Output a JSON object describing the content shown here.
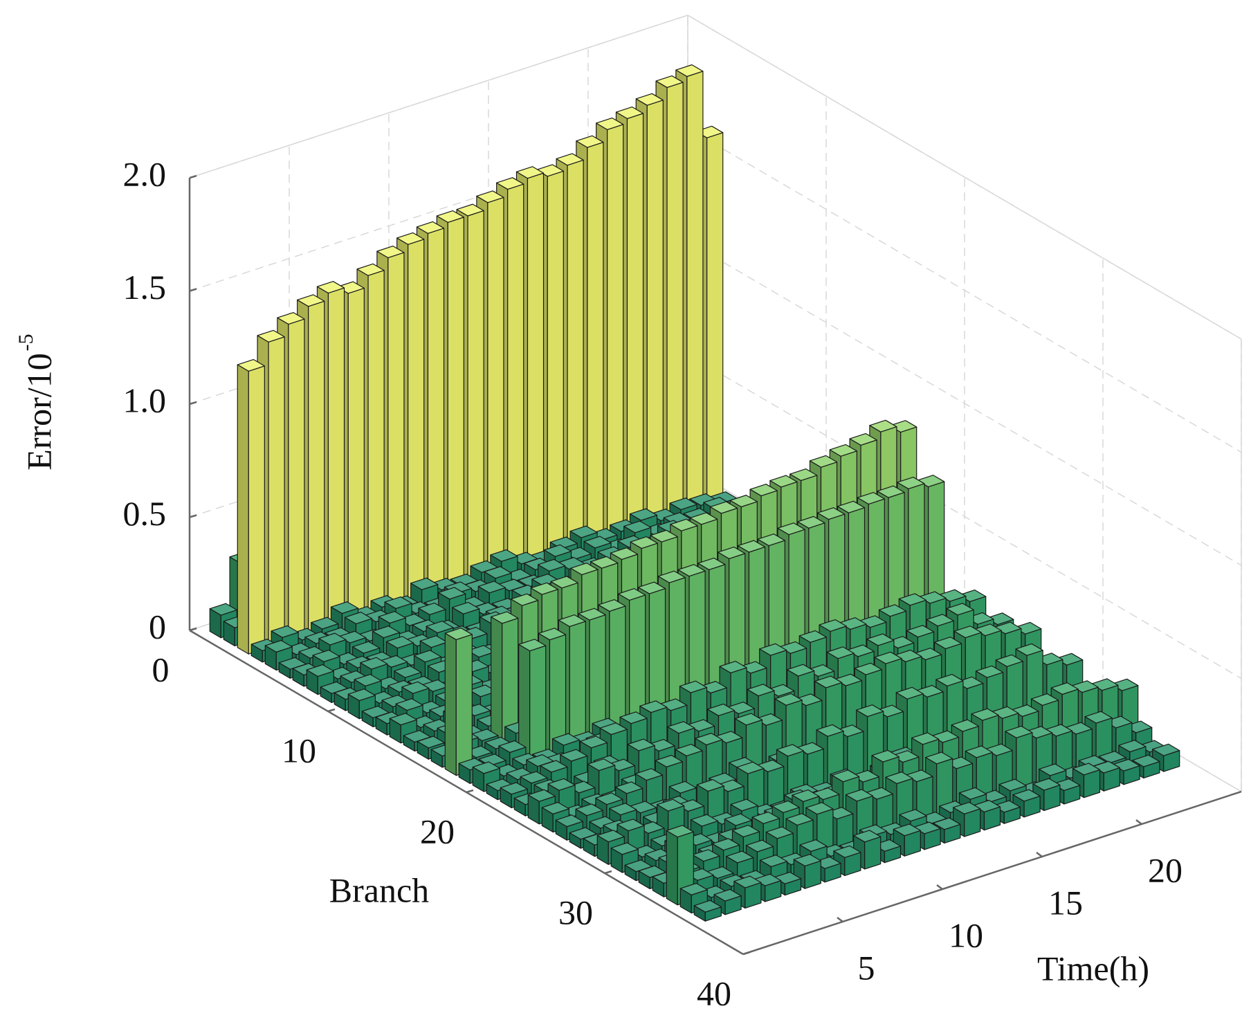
{
  "chart_data": {
    "type": "bar3d",
    "xlabel": "Branch",
    "ylabel": "Time(h)",
    "zlabel": "Error/10",
    "zlabel_exponent": "-5",
    "xlim": [
      0,
      40
    ],
    "xticks": [
      0,
      10,
      20,
      30,
      40
    ],
    "ylim": [
      0,
      25
    ],
    "yticks": [
      5,
      10,
      15,
      20
    ],
    "zlim": [
      0,
      2
    ],
    "zticks": [
      0,
      0.5,
      {
        "value": 1,
        "label": "1.0"
      },
      1.5,
      {
        "value": 2,
        "label": "2.0"
      }
    ],
    "grid": true,
    "colormap": [
      "#1e8a68",
      "#3fae68",
      "#8fd46c",
      "#eef46e"
    ],
    "clim": [
      0,
      1.2
    ],
    "x": [
      1,
      2,
      3,
      4,
      5,
      6,
      7,
      8,
      9,
      10,
      11,
      12,
      13,
      14,
      15,
      16,
      17,
      18,
      19,
      20,
      21,
      22,
      23,
      24,
      25,
      26,
      27,
      28,
      29,
      30,
      31,
      32,
      33,
      34,
      35,
      36
    ],
    "y": [
      1,
      2,
      3,
      4,
      5,
      6,
      7,
      8,
      9,
      10,
      11,
      12,
      13,
      14,
      15,
      16,
      17,
      18,
      19,
      20,
      21,
      22,
      23,
      24
    ],
    "values": [
      [
        0.1,
        0.3,
        0.25,
        0.15,
        0.2,
        0.25,
        0.3,
        0.3,
        0.32,
        0.35,
        0.38,
        0.4,
        0.42,
        0.42,
        0.45,
        0.45,
        0.45,
        0.48,
        0.48,
        0.5,
        0.5,
        0.5,
        0.5,
        0.5
      ],
      [
        0.08,
        0.15,
        0.15,
        0.12,
        0.15,
        0.18,
        0.2,
        0.22,
        0.25,
        0.25,
        0.28,
        0.3,
        0.3,
        0.32,
        0.32,
        0.35,
        0.35,
        0.35,
        0.38,
        0.38,
        0.4,
        0.4,
        0.4,
        0.42
      ],
      [
        1.25,
        1.35,
        1.4,
        1.45,
        1.48,
        1.45,
        1.5,
        1.55,
        1.58,
        1.6,
        1.62,
        1.62,
        1.65,
        1.68,
        1.7,
        1.68,
        1.7,
        1.75,
        1.8,
        1.82,
        1.85,
        1.9,
        1.92,
        1.62
      ],
      [
        0.05,
        0.08,
        0.04,
        0.06,
        0.1,
        0.05,
        0.07,
        0.04,
        0.09,
        0.06,
        0.05,
        0.08,
        0.1,
        0.06,
        0.04,
        0.07,
        0.09,
        0.05,
        0.06,
        0.08,
        0.05,
        0.07,
        0.06,
        0.04
      ],
      [
        0.08,
        0.04,
        0.06,
        0.05,
        0.09,
        0.07,
        0.1,
        0.05,
        0.04,
        0.08,
        0.06,
        0.09,
        0.05,
        0.07,
        0.1,
        0.06,
        0.08,
        0.04,
        0.09,
        0.05,
        0.07,
        0.06,
        0.08,
        0.05
      ],
      [
        0.04,
        0.06,
        0.09,
        0.07,
        0.05,
        0.1,
        0.06,
        0.08,
        0.12,
        0.05,
        0.09,
        0.07,
        0.06,
        0.1,
        0.08,
        0.05,
        0.07,
        0.09,
        0.06,
        0.1,
        0.08,
        0.06,
        0.05,
        0.07
      ],
      [
        0.05,
        0.08,
        0.04,
        0.06,
        0.1,
        0.05,
        0.07,
        0.04,
        0.09,
        0.06,
        0.05,
        0.08,
        0.1,
        0.06,
        0.04,
        0.07,
        0.09,
        0.05,
        0.06,
        0.08,
        0.05,
        0.07,
        0.06,
        0.04
      ],
      [
        0.08,
        0.04,
        0.06,
        0.05,
        0.09,
        0.07,
        0.1,
        0.05,
        0.04,
        0.08,
        0.06,
        0.09,
        0.05,
        0.07,
        0.1,
        0.06,
        0.08,
        0.04,
        0.09,
        0.05,
        0.07,
        0.06,
        0.08,
        0.05
      ],
      [
        0.04,
        0.06,
        0.09,
        0.07,
        0.05,
        0.1,
        0.06,
        0.08,
        0.12,
        0.05,
        0.09,
        0.07,
        0.06,
        0.1,
        0.08,
        0.05,
        0.07,
        0.09,
        0.06,
        0.1,
        0.08,
        0.06,
        0.05,
        0.07
      ],
      [
        0.05,
        0.08,
        0.04,
        0.06,
        0.1,
        0.05,
        0.07,
        0.04,
        0.09,
        0.06,
        0.05,
        0.08,
        0.1,
        0.06,
        0.04,
        0.07,
        0.09,
        0.05,
        0.06,
        0.08,
        0.05,
        0.07,
        0.06,
        0.04
      ],
      [
        0.08,
        0.04,
        0.06,
        0.05,
        0.09,
        0.07,
        0.1,
        0.05,
        0.04,
        0.08,
        0.06,
        0.09,
        0.05,
        0.07,
        0.1,
        0.06,
        0.08,
        0.04,
        0.09,
        0.05,
        0.07,
        0.06,
        0.08,
        0.05
      ],
      [
        0.04,
        0.06,
        0.09,
        0.07,
        0.05,
        0.1,
        0.06,
        0.08,
        0.12,
        0.05,
        0.09,
        0.07,
        0.06,
        0.1,
        0.08,
        0.05,
        0.07,
        0.09,
        0.06,
        0.1,
        0.08,
        0.06,
        0.05,
        0.07
      ],
      [
        0.05,
        0.08,
        0.04,
        0.06,
        0.1,
        0.05,
        0.07,
        0.04,
        0.09,
        0.06,
        0.05,
        0.08,
        0.1,
        0.06,
        0.04,
        0.07,
        0.09,
        0.05,
        0.06,
        0.08,
        0.05,
        0.07,
        0.06,
        0.04
      ],
      [
        0.08,
        0.04,
        0.06,
        0.05,
        0.09,
        0.07,
        0.1,
        0.05,
        0.04,
        0.08,
        0.06,
        0.09,
        0.05,
        0.07,
        0.1,
        0.06,
        0.08,
        0.04,
        0.09,
        0.05,
        0.07,
        0.06,
        0.08,
        0.05
      ],
      [
        0.04,
        0.06,
        0.09,
        0.07,
        0.05,
        0.1,
        0.06,
        0.08,
        0.12,
        0.05,
        0.09,
        0.07,
        0.06,
        0.1,
        0.08,
        0.05,
        0.07,
        0.09,
        0.06,
        0.1,
        0.08,
        0.06,
        0.05,
        0.07
      ],
      [
        0.05,
        0.08,
        0.04,
        0.06,
        0.1,
        0.05,
        0.07,
        0.04,
        0.09,
        0.06,
        0.05,
        0.08,
        0.1,
        0.06,
        0.04,
        0.07,
        0.09,
        0.05,
        0.06,
        0.08,
        0.05,
        0.07,
        0.06,
        0.04
      ],
      [
        0.05,
        0.08,
        0.06,
        0.55,
        0.6,
        0.62,
        0.62,
        0.65,
        0.65,
        0.66,
        0.68,
        0.68,
        0.7,
        0.7,
        0.72,
        0.72,
        0.74,
        0.75,
        0.75,
        0.78,
        0.8,
        0.82,
        0.85,
        0.82
      ],
      [
        0.6,
        0.05,
        0.06,
        0.1,
        0.08,
        0.1,
        0.12,
        0.1,
        0.08,
        0.1,
        0.12,
        0.1,
        0.08,
        0.1,
        0.09,
        0.1,
        0.12,
        0.1,
        0.08,
        0.1,
        0.09,
        0.1,
        0.08,
        0.1
      ],
      [
        0.06,
        0.05,
        0.08,
        0.5,
        0.52,
        0.55,
        0.55,
        0.56,
        0.58,
        0.58,
        0.6,
        0.6,
        0.6,
        0.62,
        0.62,
        0.62,
        0.64,
        0.64,
        0.65,
        0.65,
        0.66,
        0.66,
        0.67,
        0.65
      ],
      [
        0.08,
        0.04,
        0.06,
        0.05,
        0.09,
        0.07,
        0.1,
        0.05,
        0.04,
        0.08,
        0.06,
        0.09,
        0.05,
        0.07,
        0.1,
        0.06,
        0.08,
        0.04,
        0.09,
        0.05,
        0.07,
        0.06,
        0.08,
        0.05
      ],
      [
        0.04,
        0.06,
        0.09,
        0.07,
        0.05,
        0.1,
        0.06,
        0.08,
        0.12,
        0.05,
        0.09,
        0.07,
        0.06,
        0.1,
        0.08,
        0.05,
        0.07,
        0.09,
        0.06,
        0.1,
        0.08,
        0.06,
        0.05,
        0.07
      ],
      [
        0.06,
        0.08,
        0.1,
        0.12,
        0.15,
        0.18,
        0.2,
        0.22,
        0.2,
        0.25,
        0.22,
        0.28,
        0.25,
        0.3,
        0.28,
        0.3,
        0.32,
        0.3,
        0.28,
        0.3,
        0.32,
        0.3,
        0.28,
        0.25
      ],
      [
        0.05,
        0.08,
        0.04,
        0.06,
        0.1,
        0.05,
        0.07,
        0.04,
        0.09,
        0.06,
        0.05,
        0.08,
        0.1,
        0.06,
        0.04,
        0.07,
        0.09,
        0.05,
        0.06,
        0.08,
        0.05,
        0.07,
        0.06,
        0.04
      ],
      [
        0.1,
        0.12,
        0.08,
        0.15,
        0.12,
        0.18,
        0.15,
        0.2,
        0.18,
        0.22,
        0.2,
        0.25,
        0.22,
        0.28,
        0.25,
        0.3,
        0.28,
        0.3,
        0.26,
        0.28,
        0.3,
        0.32,
        0.25,
        0.22
      ],
      [
        0.08,
        0.04,
        0.06,
        0.05,
        0.09,
        0.07,
        0.1,
        0.05,
        0.04,
        0.08,
        0.06,
        0.09,
        0.05,
        0.07,
        0.1,
        0.06,
        0.08,
        0.04,
        0.09,
        0.05,
        0.07,
        0.06,
        0.08,
        0.05
      ],
      [
        0.06,
        0.08,
        0.1,
        0.12,
        0.15,
        0.18,
        0.2,
        0.22,
        0.2,
        0.25,
        0.22,
        0.28,
        0.25,
        0.3,
        0.28,
        0.3,
        0.32,
        0.3,
        0.28,
        0.3,
        0.32,
        0.3,
        0.28,
        0.25
      ],
      [
        0.04,
        0.06,
        0.09,
        0.07,
        0.05,
        0.1,
        0.06,
        0.08,
        0.12,
        0.05,
        0.09,
        0.07,
        0.06,
        0.1,
        0.08,
        0.05,
        0.07,
        0.09,
        0.06,
        0.1,
        0.08,
        0.06,
        0.05,
        0.07
      ],
      [
        0.05,
        0.08,
        0.04,
        0.06,
        0.1,
        0.05,
        0.07,
        0.04,
        0.09,
        0.06,
        0.05,
        0.08,
        0.1,
        0.06,
        0.04,
        0.07,
        0.09,
        0.05,
        0.06,
        0.08,
        0.05,
        0.07,
        0.06,
        0.04
      ],
      [
        0.1,
        0.12,
        0.08,
        0.15,
        0.12,
        0.18,
        0.15,
        0.2,
        0.18,
        0.22,
        0.2,
        0.25,
        0.22,
        0.28,
        0.25,
        0.3,
        0.28,
        0.3,
        0.26,
        0.28,
        0.3,
        0.32,
        0.25,
        0.22
      ],
      [
        0.08,
        0.04,
        0.06,
        0.05,
        0.09,
        0.07,
        0.1,
        0.05,
        0.04,
        0.08,
        0.06,
        0.09,
        0.05,
        0.07,
        0.1,
        0.06,
        0.08,
        0.04,
        0.09,
        0.05,
        0.07,
        0.06,
        0.08,
        0.05
      ],
      [
        0.04,
        0.06,
        0.09,
        0.07,
        0.05,
        0.1,
        0.06,
        0.08,
        0.12,
        0.05,
        0.09,
        0.07,
        0.06,
        0.1,
        0.08,
        0.05,
        0.07,
        0.09,
        0.06,
        0.1,
        0.08,
        0.06,
        0.05,
        0.07
      ],
      [
        0.05,
        0.08,
        0.04,
        0.06,
        0.1,
        0.05,
        0.07,
        0.04,
        0.09,
        0.06,
        0.05,
        0.08,
        0.1,
        0.06,
        0.04,
        0.07,
        0.09,
        0.05,
        0.06,
        0.08,
        0.05,
        0.07,
        0.06,
        0.04
      ],
      [
        0.06,
        0.08,
        0.1,
        0.12,
        0.15,
        0.18,
        0.2,
        0.22,
        0.2,
        0.25,
        0.22,
        0.28,
        0.25,
        0.3,
        0.28,
        0.3,
        0.32,
        0.3,
        0.28,
        0.3,
        0.32,
        0.3,
        0.28,
        0.25
      ],
      [
        0.3,
        0.08,
        0.06,
        0.1,
        0.12,
        0.15,
        0.18,
        0.2,
        0.15,
        0.2,
        0.18,
        0.22,
        0.2,
        0.25,
        0.2,
        0.22,
        0.2,
        0.25,
        0.22,
        0.2,
        0.18,
        0.2,
        0.15,
        0.1
      ],
      [
        0.08,
        0.04,
        0.06,
        0.05,
        0.09,
        0.07,
        0.1,
        0.05,
        0.04,
        0.08,
        0.06,
        0.09,
        0.05,
        0.07,
        0.1,
        0.06,
        0.08,
        0.04,
        0.09,
        0.05,
        0.07,
        0.06,
        0.08,
        0.05
      ],
      [
        0.04,
        0.06,
        0.09,
        0.07,
        0.05,
        0.1,
        0.06,
        0.08,
        0.12,
        0.05,
        0.09,
        0.07,
        0.06,
        0.1,
        0.08,
        0.05,
        0.07,
        0.09,
        0.06,
        0.1,
        0.08,
        0.06,
        0.05,
        0.07
      ]
    ]
  }
}
